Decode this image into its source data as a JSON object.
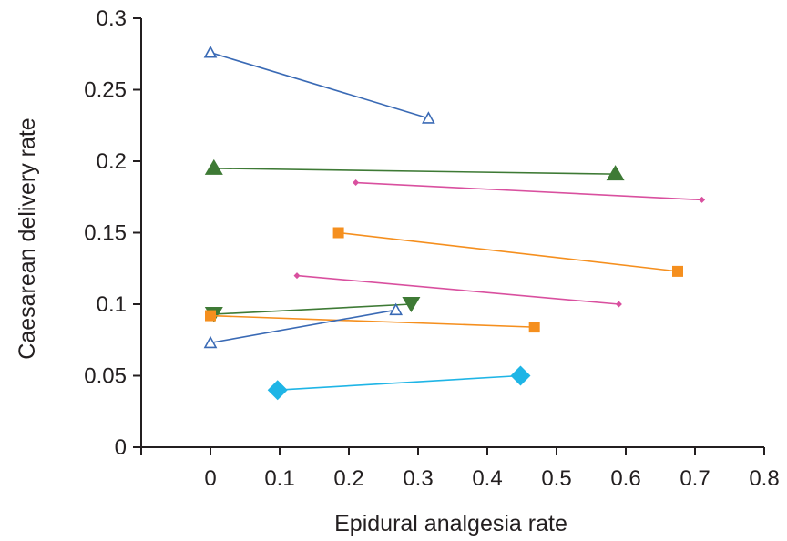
{
  "chart_data": {
    "type": "line",
    "title": "",
    "xlabel": "Epidural analgesia rate",
    "ylabel": "Caesarean delivery rate",
    "xlim": [
      -0.1,
      0.8
    ],
    "ylim": [
      0,
      0.3
    ],
    "x_ticks": [
      "0",
      "0.1",
      "0.2",
      "0.3",
      "0.4",
      "0.5",
      "0.6",
      "0.7",
      "0.8"
    ],
    "y_ticks": [
      "0",
      "0.05",
      "0.1",
      "0.15",
      "0.2",
      "0.25",
      "0.3"
    ],
    "grid": false,
    "legend": "none",
    "series": [
      {
        "color": "#3a6ab5",
        "marker": "triangle-open",
        "x": [
          0.0,
          0.315
        ],
        "y": [
          0.276,
          0.23
        ]
      },
      {
        "color": "#3e7a35",
        "marker": "triangle-filled",
        "x": [
          0.005,
          0.585
        ],
        "y": [
          0.195,
          0.191
        ]
      },
      {
        "color": "#d9509f",
        "marker": "diamond-small",
        "x": [
          0.21,
          0.71
        ],
        "y": [
          0.185,
          0.173
        ]
      },
      {
        "color": "#f58f1e",
        "marker": "square",
        "x": [
          0.185,
          0.675
        ],
        "y": [
          0.15,
          0.123
        ]
      },
      {
        "color": "#d9509f",
        "marker": "diamond-small",
        "x": [
          0.125,
          0.59
        ],
        "y": [
          0.12,
          0.1
        ]
      },
      {
        "color": "#3e7a35",
        "marker": "triangle-down",
        "x": [
          0.005,
          0.29
        ],
        "y": [
          0.093,
          0.1
        ]
      },
      {
        "color": "#f58f1e",
        "marker": "square",
        "x": [
          0.0,
          0.468
        ],
        "y": [
          0.092,
          0.084
        ]
      },
      {
        "color": "#3a6ab5",
        "marker": "triangle-open",
        "x": [
          0.0,
          0.268
        ],
        "y": [
          0.073,
          0.096
        ]
      },
      {
        "color": "#1fb5e6",
        "marker": "diamond",
        "x": [
          0.097,
          0.448
        ],
        "y": [
          0.04,
          0.05
        ]
      }
    ]
  }
}
